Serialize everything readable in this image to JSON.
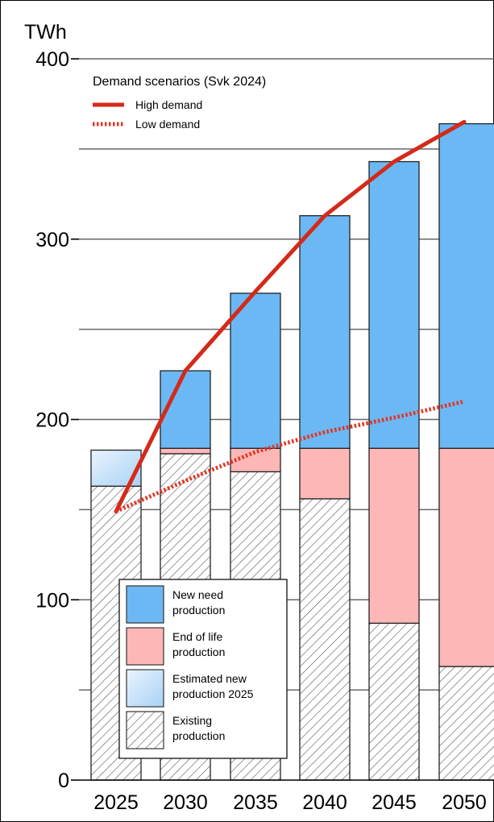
{
  "chart_data": {
    "type": "bar",
    "stacked": true,
    "ylabel": "TWh",
    "ylim": [
      0,
      400
    ],
    "yticks": [
      "0",
      "100",
      "200",
      "300",
      "400"
    ],
    "grid": true,
    "categories": [
      "2025",
      "2030",
      "2035",
      "2040",
      "2045",
      "2050"
    ],
    "series": [
      {
        "name": "Existing production",
        "color": "#ffffff",
        "pattern": "diagonal-hatch",
        "values": [
          163,
          181,
          171,
          156,
          87,
          63
        ]
      },
      {
        "name": "Estimated new production 2025",
        "color": "#cfe6fb",
        "values": [
          20,
          0,
          0,
          0,
          0,
          0
        ]
      },
      {
        "name": "End of life production",
        "color": "#fdb7b7",
        "values": [
          0,
          3,
          13,
          28,
          97,
          121
        ]
      },
      {
        "name": "New need production",
        "color": "#6cb8f4",
        "values": [
          0,
          43,
          86,
          129,
          159,
          180
        ]
      }
    ],
    "lines_title": "Demand scenarios (Svk 2024)",
    "lines": [
      {
        "name": "High demand",
        "style": "solid",
        "color": "#d42a1a",
        "values": [
          149,
          227,
          271,
          313,
          343,
          365
        ]
      },
      {
        "name": "Low demand",
        "style": "dotted",
        "color": "#e4341f",
        "values": [
          149,
          166,
          182,
          193,
          201,
          210
        ]
      }
    ],
    "legend": {
      "placement": "bottom-left",
      "entries": [
        {
          "text": [
            "New need",
            "production"
          ],
          "color": "#6cb8f4"
        },
        {
          "text": [
            "End of life",
            "production"
          ],
          "color": "#fdb7b7"
        },
        {
          "text": [
            "Estimated new",
            "production 2025"
          ],
          "color": "#cfe6fb"
        },
        {
          "text": [
            "Existing",
            "production"
          ],
          "color": "#ffffff",
          "pattern": "diagonal-hatch"
        }
      ]
    }
  }
}
